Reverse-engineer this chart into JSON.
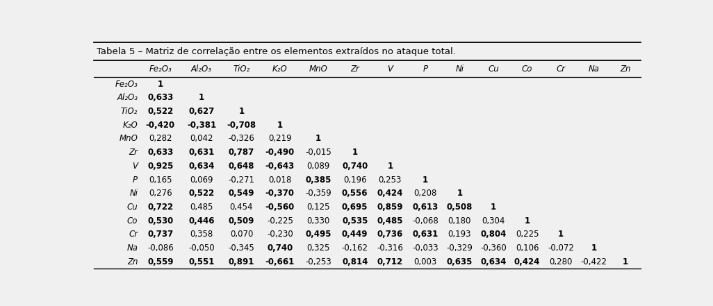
{
  "title": "Tabela 5 – Matriz de correlação entre os elementos extraídos no ataque total.",
  "col_headers": [
    "Fe₂O₃",
    "Al₂O₃",
    "TiO₂",
    "K₂O",
    "MnO",
    "Zr",
    "V",
    "P",
    "Ni",
    "Cu",
    "Co",
    "Cr",
    "Na",
    "Zn"
  ],
  "row_headers": [
    "Fe₂O₃",
    "Al₂O₃",
    "TiO₂",
    "K₂O",
    "MnO",
    "Zr",
    "V",
    "P",
    "Ni",
    "Cu",
    "Co",
    "Cr",
    "Na",
    "Zn"
  ],
  "data": [
    [
      "1",
      "",
      "",
      "",
      "",
      "",
      "",
      "",
      "",
      "",
      "",
      "",
      "",
      ""
    ],
    [
      "0,633",
      "1",
      "",
      "",
      "",
      "",
      "",
      "",
      "",
      "",
      "",
      "",
      "",
      ""
    ],
    [
      "0,522",
      "0,627",
      "1",
      "",
      "",
      "",
      "",
      "",
      "",
      "",
      "",
      "",
      "",
      ""
    ],
    [
      "-0,420",
      "-0,381",
      "-0,708",
      "1",
      "",
      "",
      "",
      "",
      "",
      "",
      "",
      "",
      "",
      ""
    ],
    [
      "0,282",
      "0,042",
      "-0,326",
      "0,219",
      "1",
      "",
      "",
      "",
      "",
      "",
      "",
      "",
      "",
      ""
    ],
    [
      "0,633",
      "0,631",
      "0,787",
      "-0,490",
      "-0,015",
      "1",
      "",
      "",
      "",
      "",
      "",
      "",
      "",
      ""
    ],
    [
      "0,925",
      "0,634",
      "0,648",
      "-0,643",
      "0,089",
      "0,740",
      "1",
      "",
      "",
      "",
      "",
      "",
      "",
      ""
    ],
    [
      "0,165",
      "0,069",
      "-0,271",
      "0,018",
      "0,385",
      "0,196",
      "0,253",
      "1",
      "",
      "",
      "",
      "",
      "",
      ""
    ],
    [
      "0,276",
      "0,522",
      "0,549",
      "-0,370",
      "-0,359",
      "0,556",
      "0,424",
      "0,208",
      "1",
      "",
      "",
      "",
      "",
      ""
    ],
    [
      "0,722",
      "0,485",
      "0,454",
      "-0,560",
      "0,125",
      "0,695",
      "0,859",
      "0,613",
      "0,508",
      "1",
      "",
      "",
      "",
      ""
    ],
    [
      "0,530",
      "0,446",
      "0,509",
      "-0,225",
      "0,330",
      "0,535",
      "0,485",
      "-0,068",
      "0,180",
      "0,304",
      "1",
      "",
      "",
      ""
    ],
    [
      "0,737",
      "0,358",
      "0,070",
      "-0,230",
      "0,495",
      "0,449",
      "0,736",
      "0,631",
      "0,193",
      "0,804",
      "0,225",
      "1",
      "",
      ""
    ],
    [
      "-0,086",
      "-0,050",
      "-0,345",
      "0,740",
      "0,325",
      "-0,162",
      "-0,316",
      "-0,033",
      "-0,329",
      "-0,360",
      "0,106",
      "-0,072",
      "1",
      ""
    ],
    [
      "0,559",
      "0,551",
      "0,891",
      "-0,661",
      "-0,253",
      "0,814",
      "0,712",
      "0,003",
      "0,635",
      "0,634",
      "0,424",
      "0,280",
      "-0,422",
      "1"
    ]
  ],
  "bold": [
    [
      true,
      false,
      false,
      false,
      false,
      false,
      false,
      false,
      false,
      false,
      false,
      false,
      false,
      false
    ],
    [
      true,
      true,
      false,
      false,
      false,
      false,
      false,
      false,
      false,
      false,
      false,
      false,
      false,
      false
    ],
    [
      true,
      true,
      true,
      false,
      false,
      false,
      false,
      false,
      false,
      false,
      false,
      false,
      false,
      false
    ],
    [
      true,
      true,
      true,
      true,
      false,
      false,
      false,
      false,
      false,
      false,
      false,
      false,
      false,
      false
    ],
    [
      false,
      false,
      false,
      false,
      true,
      false,
      false,
      false,
      false,
      false,
      false,
      false,
      false,
      false
    ],
    [
      true,
      true,
      true,
      true,
      false,
      true,
      false,
      false,
      false,
      false,
      false,
      false,
      false,
      false
    ],
    [
      true,
      true,
      true,
      true,
      false,
      true,
      true,
      false,
      false,
      false,
      false,
      false,
      false,
      false
    ],
    [
      false,
      false,
      false,
      false,
      true,
      false,
      false,
      true,
      false,
      false,
      false,
      false,
      false,
      false
    ],
    [
      false,
      true,
      true,
      true,
      false,
      true,
      true,
      false,
      true,
      false,
      false,
      false,
      false,
      false
    ],
    [
      true,
      false,
      false,
      true,
      false,
      true,
      true,
      true,
      true,
      true,
      false,
      false,
      false,
      false
    ],
    [
      true,
      true,
      true,
      false,
      false,
      true,
      true,
      false,
      false,
      false,
      true,
      false,
      false,
      false
    ],
    [
      true,
      false,
      false,
      false,
      true,
      true,
      true,
      true,
      false,
      true,
      false,
      true,
      false,
      false
    ],
    [
      false,
      false,
      false,
      true,
      false,
      false,
      false,
      false,
      false,
      false,
      false,
      false,
      true,
      false
    ],
    [
      true,
      true,
      true,
      true,
      false,
      true,
      true,
      false,
      true,
      true,
      true,
      false,
      false,
      true
    ]
  ],
  "background_color": "#f0f0f0",
  "font_size": 8.5,
  "title_fontsize": 9.5
}
